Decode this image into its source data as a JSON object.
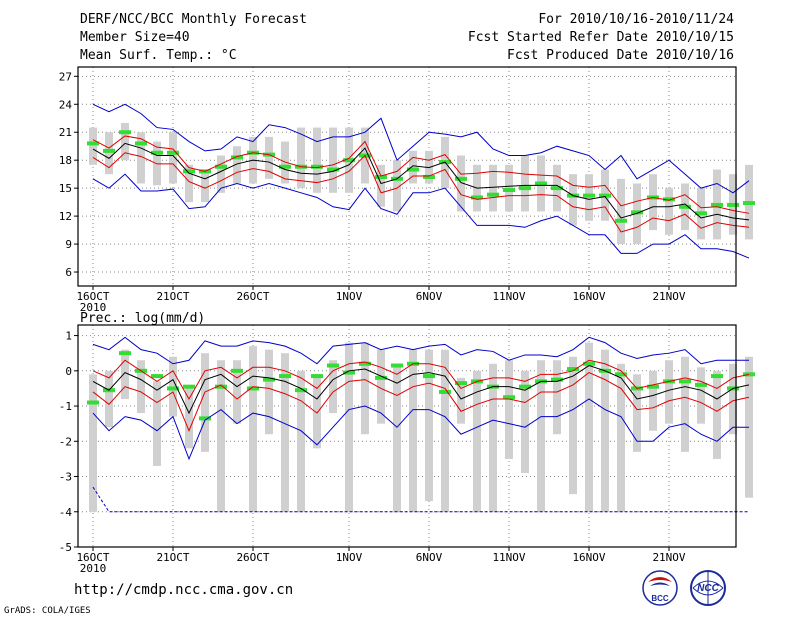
{
  "header": {
    "title": "DERF/NCC/BCC Monthly Forecast",
    "member_size": "Member Size=40",
    "variable": "Mean Surf. Temp.: °C",
    "fcst_period": "For 2010/10/16-2010/11/24",
    "fcst_started": "Fcst Started Refer Date 2010/10/15",
    "fcst_produced": "Fcst Produced Date 2010/10/16"
  },
  "footer": {
    "url": "http://cmdp.ncc.cma.gov.cn",
    "grads_credit": "GrADS: COLA/IGES",
    "logo_bcc": "BCC",
    "logo_ncc": "NCC"
  },
  "colors": {
    "ensemble_mean": "#000000",
    "plus_minus_sd": "#e00000",
    "max_min": "#0000cc",
    "spread_bar": "#d0d0d0",
    "climatology": "#33dd33",
    "grid": "#888888"
  },
  "chart_data": [
    {
      "type": "line",
      "id": "temperature",
      "title": "Mean Surf. Temp.: °C",
      "x_tick_labels": [
        "16OCT",
        "21OCT",
        "26OCT",
        "1NOV",
        "6NOV",
        "11NOV",
        "16NOV",
        "21NOV"
      ],
      "x_tick_days": [
        1,
        6,
        11,
        17,
        22,
        27,
        32,
        37
      ],
      "x_year_label": "2010",
      "ylim": [
        4.5,
        28
      ],
      "y_ticks": [
        6,
        9,
        12,
        15,
        18,
        21,
        24,
        27
      ],
      "grid": true,
      "series": [
        {
          "name": "max",
          "values": [
            24.0,
            23.2,
            24.0,
            23.0,
            21.5,
            21.3,
            20.0,
            19.0,
            19.2,
            20.5,
            20.0,
            21.8,
            21.5,
            20.8,
            20.0,
            20.5,
            20.5,
            21.0,
            22.5,
            18.0,
            19.5,
            21.0,
            20.8,
            20.5,
            21.0,
            19.2,
            18.5,
            18.5,
            18.8,
            19.5,
            19.0,
            18.5,
            17.0,
            18.5,
            16.0,
            17.0,
            18.0,
            16.5,
            15.0,
            15.5,
            14.5,
            15.8
          ]
        },
        {
          "name": "mean_plus_sd",
          "values": [
            20.2,
            19.3,
            20.6,
            20.3,
            19.4,
            19.2,
            17.2,
            16.8,
            17.6,
            18.4,
            18.8,
            18.6,
            17.8,
            17.3,
            17.2,
            17.5,
            18.2,
            20.0,
            16.3,
            16.8,
            18.3,
            18.0,
            18.6,
            16.5,
            16.6,
            16.8,
            16.7,
            16.5,
            16.4,
            16.3,
            15.3,
            15.1,
            15.3,
            13.1,
            13.6,
            14.0,
            13.7,
            14.3,
            12.9,
            13.0,
            12.6,
            12.3
          ]
        },
        {
          "name": "mean",
          "values": [
            19.2,
            18.2,
            19.8,
            19.3,
            18.5,
            18.5,
            16.6,
            16.0,
            16.8,
            17.6,
            18.0,
            17.8,
            17.0,
            16.6,
            16.5,
            16.8,
            17.5,
            19.3,
            15.5,
            16.0,
            17.4,
            17.2,
            17.8,
            15.6,
            15.0,
            15.1,
            15.2,
            15.3,
            15.3,
            15.3,
            14.2,
            13.8,
            14.1,
            11.8,
            12.3,
            13.0,
            13.0,
            13.3,
            11.8,
            12.2,
            11.8,
            11.6
          ]
        },
        {
          "name": "mean_minus_sd",
          "values": [
            18.3,
            17.2,
            18.8,
            18.4,
            17.6,
            17.6,
            15.7,
            15.0,
            15.8,
            16.7,
            17.1,
            16.8,
            16.0,
            15.8,
            15.6,
            16.0,
            16.8,
            18.5,
            14.5,
            15.0,
            16.3,
            16.3,
            17.0,
            14.3,
            13.8,
            14.0,
            14.2,
            14.2,
            14.3,
            14.2,
            13.0,
            12.7,
            13.0,
            10.3,
            10.8,
            11.8,
            11.5,
            12.2,
            10.7,
            11.3,
            11.0,
            10.8
          ]
        },
        {
          "name": "min",
          "values": [
            16.0,
            15.0,
            16.5,
            14.7,
            14.7,
            14.9,
            12.8,
            13.0,
            15.0,
            15.5,
            15.0,
            15.5,
            15.0,
            14.5,
            14.0,
            13.0,
            12.7,
            15.0,
            12.8,
            12.2,
            14.5,
            14.5,
            15.0,
            13.0,
            11.0,
            11.0,
            11.0,
            10.8,
            11.5,
            12.0,
            11.0,
            10.0,
            10.0,
            8.0,
            8.0,
            9.0,
            9.0,
            10.0,
            8.5,
            8.5,
            8.2,
            7.5
          ]
        }
      ],
      "spread_bars": {
        "low": [
          17.5,
          16.5,
          18.0,
          15.5,
          15.3,
          15.5,
          13.5,
          13.5,
          14.5,
          15.5,
          15.5,
          16.0,
          15.5,
          15.0,
          14.5,
          14.5,
          14.5,
          15.5,
          13.0,
          12.5,
          15.5,
          15.5,
          15.0,
          12.5,
          12.5,
          12.5,
          12.5,
          12.5,
          12.5,
          12.5,
          11.0,
          11.5,
          11.5,
          9.0,
          9.0,
          10.5,
          10.0,
          10.5,
          9.5,
          9.5,
          10.0,
          9.5
        ],
        "high": [
          21.5,
          21.0,
          22.0,
          21.0,
          20.0,
          21.0,
          17.5,
          17.0,
          18.5,
          19.5,
          20.5,
          20.5,
          20.0,
          21.5,
          21.5,
          21.5,
          21.5,
          21.5,
          17.5,
          18.0,
          19.0,
          19.0,
          20.5,
          18.5,
          17.5,
          17.5,
          17.5,
          18.5,
          18.5,
          17.5,
          16.5,
          16.5,
          17.0,
          16.0,
          15.5,
          16.5,
          15.0,
          15.5,
          15.0,
          17.0,
          16.5,
          17.5
        ]
      },
      "climatology": [
        19.8,
        19.0,
        21.0,
        19.8,
        18.8,
        18.8,
        16.8,
        16.8,
        17.3,
        18.3,
        18.8,
        18.6,
        17.3,
        17.3,
        17.3,
        17.0,
        18.0,
        18.5,
        16.2,
        16.0,
        17.0,
        16.2,
        17.8,
        16.0,
        14.0,
        14.3,
        14.8,
        15.0,
        15.5,
        15.0,
        14.2,
        14.2,
        14.2,
        11.5,
        12.4,
        14.0,
        13.8,
        13.0,
        12.3,
        13.2,
        13.2,
        13.4
      ]
    },
    {
      "type": "line",
      "id": "precipitation",
      "title": "Prec.: log(mm/d)",
      "x_tick_labels": [
        "16OCT",
        "21OCT",
        "26OCT",
        "1NOV",
        "6NOV",
        "11NOV",
        "16NOV",
        "21NOV"
      ],
      "x_tick_days": [
        1,
        6,
        11,
        17,
        22,
        27,
        32,
        37
      ],
      "x_year_label": "2010",
      "ylim": [
        -5,
        1.3
      ],
      "y_ticks": [
        -5,
        -4,
        -3,
        -2,
        -1,
        0,
        1
      ],
      "grid": true,
      "series": [
        {
          "name": "max",
          "values": [
            0.75,
            0.6,
            0.95,
            0.6,
            0.5,
            0.2,
            0.3,
            0.85,
            0.7,
            0.7,
            0.85,
            0.8,
            0.7,
            0.5,
            0.2,
            0.7,
            0.75,
            0.8,
            0.6,
            0.7,
            0.6,
            0.7,
            0.75,
            0.45,
            0.6,
            0.55,
            0.3,
            0.45,
            0.45,
            0.4,
            0.6,
            0.95,
            0.8,
            0.5,
            0.35,
            0.45,
            0.5,
            0.6,
            0.2,
            0.3,
            0.3,
            0.3
          ]
        },
        {
          "name": "mean_plus_sd",
          "values": [
            0.0,
            -0.2,
            0.3,
            0.0,
            -0.3,
            0.0,
            -0.8,
            0.0,
            0.1,
            -0.2,
            0.1,
            0.1,
            0.0,
            -0.2,
            -0.5,
            0.0,
            0.2,
            0.25,
            0.1,
            -0.1,
            0.2,
            0.2,
            0.1,
            -0.5,
            -0.3,
            -0.2,
            -0.2,
            -0.3,
            -0.1,
            -0.1,
            0.0,
            0.3,
            0.2,
            0.0,
            -0.5,
            -0.4,
            -0.3,
            -0.2,
            -0.3,
            -0.5,
            -0.2,
            -0.1
          ]
        },
        {
          "name": "mean",
          "values": [
            -0.3,
            -0.55,
            -0.05,
            -0.25,
            -0.55,
            -0.25,
            -1.2,
            -0.25,
            -0.1,
            -0.45,
            -0.15,
            -0.2,
            -0.3,
            -0.5,
            -0.8,
            -0.25,
            0.0,
            0.05,
            -0.15,
            -0.35,
            -0.1,
            -0.05,
            -0.15,
            -0.8,
            -0.6,
            -0.45,
            -0.45,
            -0.55,
            -0.3,
            -0.3,
            -0.15,
            0.15,
            0.0,
            -0.2,
            -0.8,
            -0.7,
            -0.55,
            -0.45,
            -0.55,
            -0.8,
            -0.5,
            -0.4
          ]
        },
        {
          "name": "mean_minus_sd",
          "values": [
            -0.6,
            -0.95,
            -0.45,
            -0.6,
            -0.9,
            -0.6,
            -1.7,
            -0.6,
            -0.4,
            -0.8,
            -0.45,
            -0.5,
            -0.65,
            -0.85,
            -1.2,
            -0.6,
            -0.3,
            -0.25,
            -0.5,
            -0.7,
            -0.45,
            -0.35,
            -0.5,
            -1.15,
            -0.95,
            -0.8,
            -0.8,
            -0.9,
            -0.6,
            -0.6,
            -0.4,
            -0.05,
            -0.25,
            -0.5,
            -1.1,
            -1.05,
            -0.85,
            -0.75,
            -0.9,
            -1.15,
            -0.85,
            -0.75
          ]
        },
        {
          "name": "min",
          "values": [
            -1.2,
            -1.7,
            -1.3,
            -1.4,
            -1.7,
            -1.3,
            -2.5,
            -1.4,
            -1.1,
            -1.5,
            -1.2,
            -1.3,
            -1.5,
            -1.7,
            -2.1,
            -1.6,
            -1.1,
            -1.0,
            -1.2,
            -1.6,
            -1.1,
            -1.1,
            -1.3,
            -1.8,
            -1.6,
            -1.4,
            -1.5,
            -1.6,
            -1.3,
            -1.3,
            -1.1,
            -0.8,
            -1.1,
            -1.3,
            -2.0,
            -2.0,
            -1.6,
            -1.5,
            -1.8,
            -2.0,
            -1.6,
            -1.6
          ]
        }
      ],
      "lowest_member": [
        -3.3,
        -4.0,
        -4.0,
        -4.0,
        -4.0,
        -4.0,
        -4.0,
        -4.0,
        -4.0,
        -4.0,
        -4.0,
        -4.0,
        -4.0,
        -4.0,
        -4.0,
        -4.0,
        -4.0,
        -4.0,
        -4.0,
        -4.0,
        -4.0,
        -4.0,
        -4.0,
        -4.0,
        -4.0,
        -4.0,
        -4.0,
        -4.0,
        -4.0,
        -4.0,
        -4.0,
        -4.0,
        -4.0,
        -4.0,
        -4.0,
        -4.0,
        -4.0,
        -4.0,
        -4.0,
        -4.0,
        -4.0,
        -4.0
      ],
      "spread_bars": {
        "low": [
          -4.0,
          -1.6,
          -0.8,
          -1.2,
          -2.7,
          -1.3,
          -2.2,
          -2.3,
          -4.0,
          -1.5,
          -4.0,
          -1.8,
          -4.0,
          -4.0,
          -2.2,
          -1.2,
          -4.0,
          -1.8,
          -1.5,
          -4.0,
          -4.0,
          -3.7,
          -4.0,
          -1.5,
          -4.0,
          -4.0,
          -2.5,
          -2.9,
          -4.0,
          -1.8,
          -3.5,
          -4.0,
          -4.0,
          -4.0,
          -2.3,
          -1.7,
          -1.5,
          -2.3,
          -1.5,
          -2.5,
          -1.8,
          -3.6
        ],
        "high": [
          -0.1,
          0.0,
          0.6,
          0.3,
          -0.3,
          0.4,
          -0.5,
          0.5,
          0.3,
          0.3,
          0.7,
          0.6,
          0.5,
          0.0,
          -0.1,
          0.3,
          0.8,
          0.8,
          0.6,
          0.1,
          0.6,
          0.6,
          0.6,
          -0.2,
          0.0,
          0.2,
          0.3,
          0.0,
          0.3,
          0.3,
          0.4,
          0.8,
          0.6,
          0.2,
          -0.1,
          0.0,
          0.3,
          0.4,
          0.1,
          0.0,
          0.2,
          0.4
        ]
      },
      "climatology": [
        -0.9,
        -0.55,
        0.5,
        0.0,
        -0.15,
        -0.5,
        -0.45,
        -1.35,
        -0.45,
        0.0,
        -0.5,
        -0.25,
        -0.15,
        -0.55,
        -0.15,
        0.15,
        -0.05,
        0.2,
        -0.2,
        0.15,
        0.2,
        -0.15,
        -0.6,
        -0.35,
        -0.3,
        -0.45,
        -0.75,
        -0.45,
        -0.3,
        -0.25,
        0.05,
        0.2,
        0.0,
        -0.1,
        -0.5,
        -0.45,
        -0.3,
        -0.3,
        -0.4,
        -0.15,
        -0.5,
        -0.1
      ]
    }
  ]
}
